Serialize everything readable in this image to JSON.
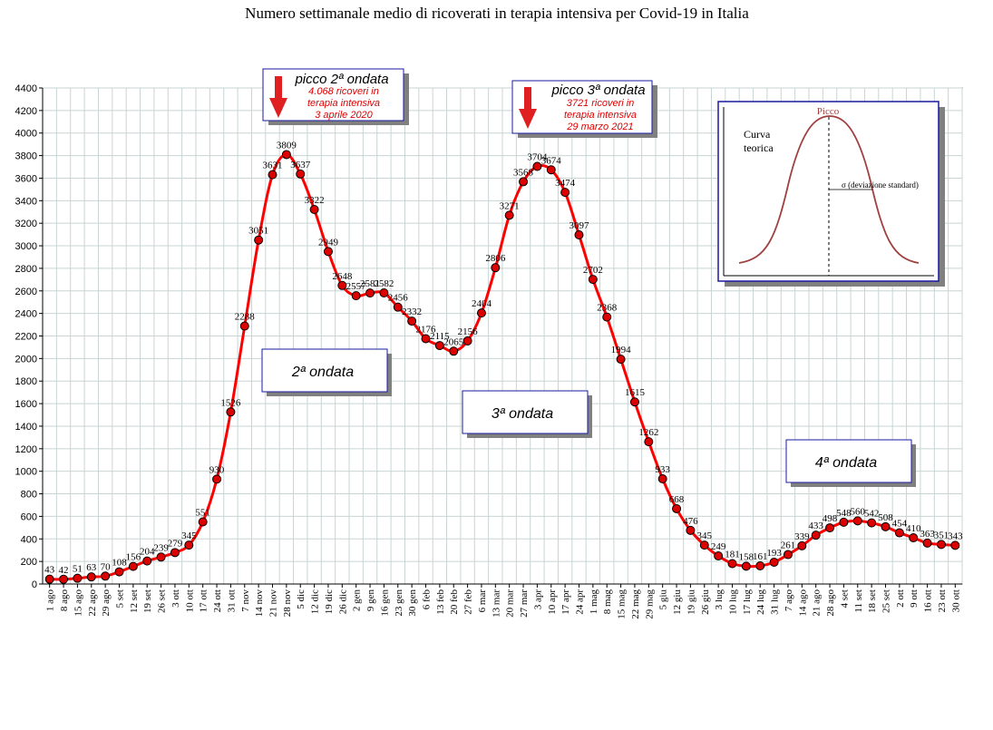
{
  "chart_data": {
    "type": "line",
    "title": "Numero settimanale medio di ricoverati in terapia intensiva per Covid-19 in Italia",
    "xlabel": "",
    "ylabel": "",
    "ylim": [
      0,
      4400
    ],
    "y_tick_step": 200,
    "grid": true,
    "colors": {
      "line": "#ff0000",
      "marker": "#dd0000",
      "grid": "#c8d4d4",
      "box_border": "#1a1aa0",
      "box_shadow": "#808080",
      "annotation_text": "#dd0000",
      "bell_curve": "#a04040"
    },
    "categories": [
      "1 ago",
      "8 ago",
      "15 ago",
      "22 ago",
      "29 ago",
      "5 set",
      "12 set",
      "19 set",
      "26 set",
      "3 ott",
      "10 ott",
      "17 ott",
      "24 ott",
      "31 ott",
      "7 nov",
      "14 nov",
      "21 nov",
      "28 nov",
      "5 dic",
      "12 dic",
      "19 dic",
      "26 dic",
      "2 gen",
      "9 gen",
      "16 gen",
      "23 gen",
      "30 gen",
      "6 feb",
      "13 feb",
      "20 feb",
      "27 feb",
      "6 mar",
      "13 mar",
      "20 mar",
      "27 mar",
      "3 apr",
      "10 apr",
      "17 apr",
      "24 apr",
      "1 mag",
      "8 mag",
      "15 mag",
      "22 mag",
      "29 mag",
      "5 giu",
      "12 giu",
      "19 giu",
      "26 giu",
      "3 lug",
      "10 lug",
      "17 lug",
      "24 lug",
      "31 lug",
      "7 ago",
      "14 ago",
      "21 ago",
      "28 ago",
      "4 set",
      "11 set",
      "18 set",
      "25 set",
      "2 ott",
      "9 ott",
      "16 ott",
      "23 ott",
      "30 ott"
    ],
    "series": [
      {
        "values": [
          43,
          42,
          51,
          63,
          70,
          108,
          156,
          204,
          239,
          279,
          345,
          551,
          930,
          1526,
          2288,
          3051,
          3631,
          3809,
          3637,
          3322,
          2949,
          2648,
          2557,
          2581,
          2582,
          2456,
          2332,
          2176,
          2115,
          2065,
          2156,
          2404,
          2806,
          3271,
          3568,
          3704,
          3674,
          3474,
          3097,
          2702,
          2368,
          1994,
          1615,
          1262,
          933,
          668,
          476,
          345,
          249,
          181,
          158,
          161,
          193,
          261,
          339,
          433,
          498,
          548,
          560,
          542,
          508,
          454,
          410,
          363,
          351,
          343
        ],
        "labels": [
          "43",
          "42",
          "51",
          "63",
          "70",
          "108",
          "156",
          "204",
          "239",
          "279",
          "345",
          "551",
          "930",
          "1526",
          "2288",
          "3051",
          "3631",
          "3809",
          "3637",
          "3322",
          "2949",
          "2648",
          "2557",
          "2581",
          "2582",
          "2456",
          "2332",
          "2176",
          "2115",
          "2065",
          "2156",
          "2404",
          "2806",
          "3271",
          "3568",
          "3704",
          "3674",
          "3474",
          "3097",
          "2702",
          "2368",
          "1994",
          "1615",
          "1262",
          "933",
          "668",
          "476",
          "345",
          "249",
          "181",
          "158",
          "161",
          "193",
          "261",
          "339",
          "433",
          "498",
          "548",
          "560",
          "542",
          "508",
          "454",
          "410",
          "363",
          "351",
          "343"
        ]
      }
    ],
    "annotations": {
      "peak2": {
        "title": "picco 2ª ondata",
        "lines": [
          "4.068 ricoveri in",
          "terapia intensiva",
          "3 aprile 2020"
        ]
      },
      "peak3": {
        "title": "picco 3ª ondata",
        "lines": [
          "3721 ricoveri in",
          "terapia intensiva",
          "29 marzo 2021"
        ]
      },
      "waves": [
        "2ª ondata",
        "3ª ondata",
        "4ª ondata"
      ],
      "inset": {
        "label_line1": "Curva",
        "label_line2": "teorica",
        "peak_label": "Picco",
        "sigma_label": "σ  (deviazione standard)"
      }
    }
  }
}
